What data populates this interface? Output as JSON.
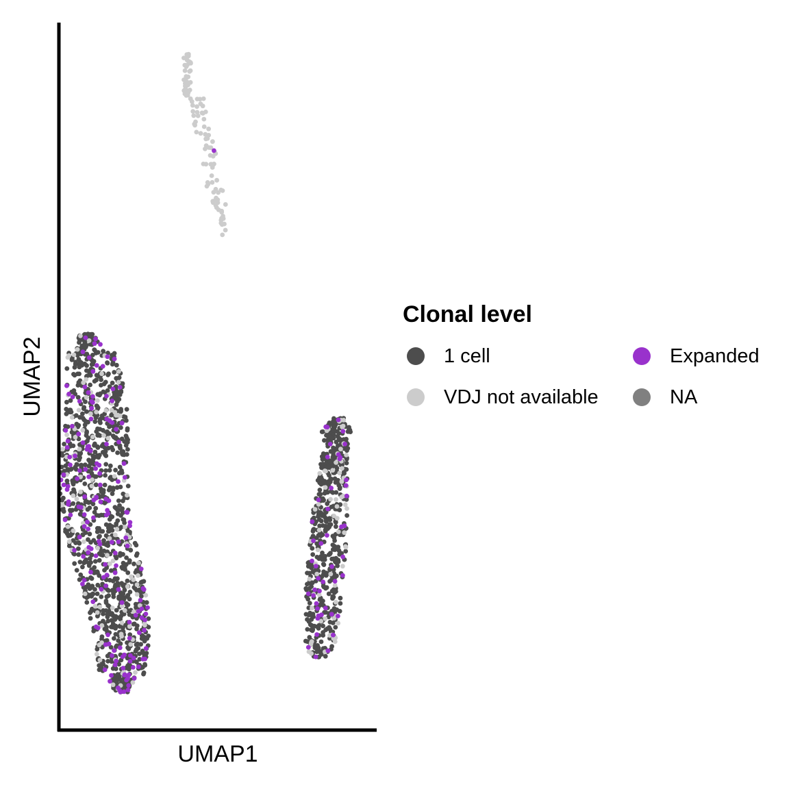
{
  "chart_data": {
    "type": "scatter",
    "title": "",
    "xlabel": "UMAP1",
    "ylabel": "UMAP2",
    "xlim": [
      0,
      100
    ],
    "ylim": [
      0,
      100
    ],
    "grid": false,
    "axis_ticks": false,
    "legend": {
      "title": "Clonal level",
      "position": "right",
      "columns": 2,
      "entries": [
        {
          "name": "1 cell",
          "color": "#4d4d4d"
        },
        {
          "name": "Expanded",
          "color": "#9932cc"
        },
        {
          "name": "VDJ not available",
          "color": "#cccccc"
        },
        {
          "name": "NA",
          "color": "#808080"
        }
      ]
    },
    "series": [
      {
        "name": "1 cell",
        "color": "#4d4d4d"
      },
      {
        "name": "Expanded",
        "color": "#9932cc"
      },
      {
        "name": "VDJ not available",
        "color": "#cccccc"
      },
      {
        "name": "NA",
        "color": "#808080"
      }
    ],
    "clusters": [
      {
        "id": "left-cluster",
        "x_range": [
          3,
          35
        ],
        "y_range": [
          5,
          56
        ],
        "approx_points": 1400,
        "mix": {
          "1 cell": 0.8,
          "Expanded": 0.12,
          "VDJ not available": 0.08
        }
      },
      {
        "id": "right-cluster",
        "x_range": [
          75,
          96
        ],
        "y_range": [
          10,
          44
        ],
        "approx_points": 650,
        "mix": {
          "1 cell": 0.8,
          "Expanded": 0.1,
          "VDJ not available": 0.1
        }
      },
      {
        "id": "top-cluster",
        "x_range": [
          36,
          55
        ],
        "y_range": [
          70,
          96
        ],
        "approx_points": 120,
        "mix": {
          "1 cell": 0.03,
          "Expanded": 0.01,
          "VDJ not available": 0.96
        }
      }
    ]
  }
}
